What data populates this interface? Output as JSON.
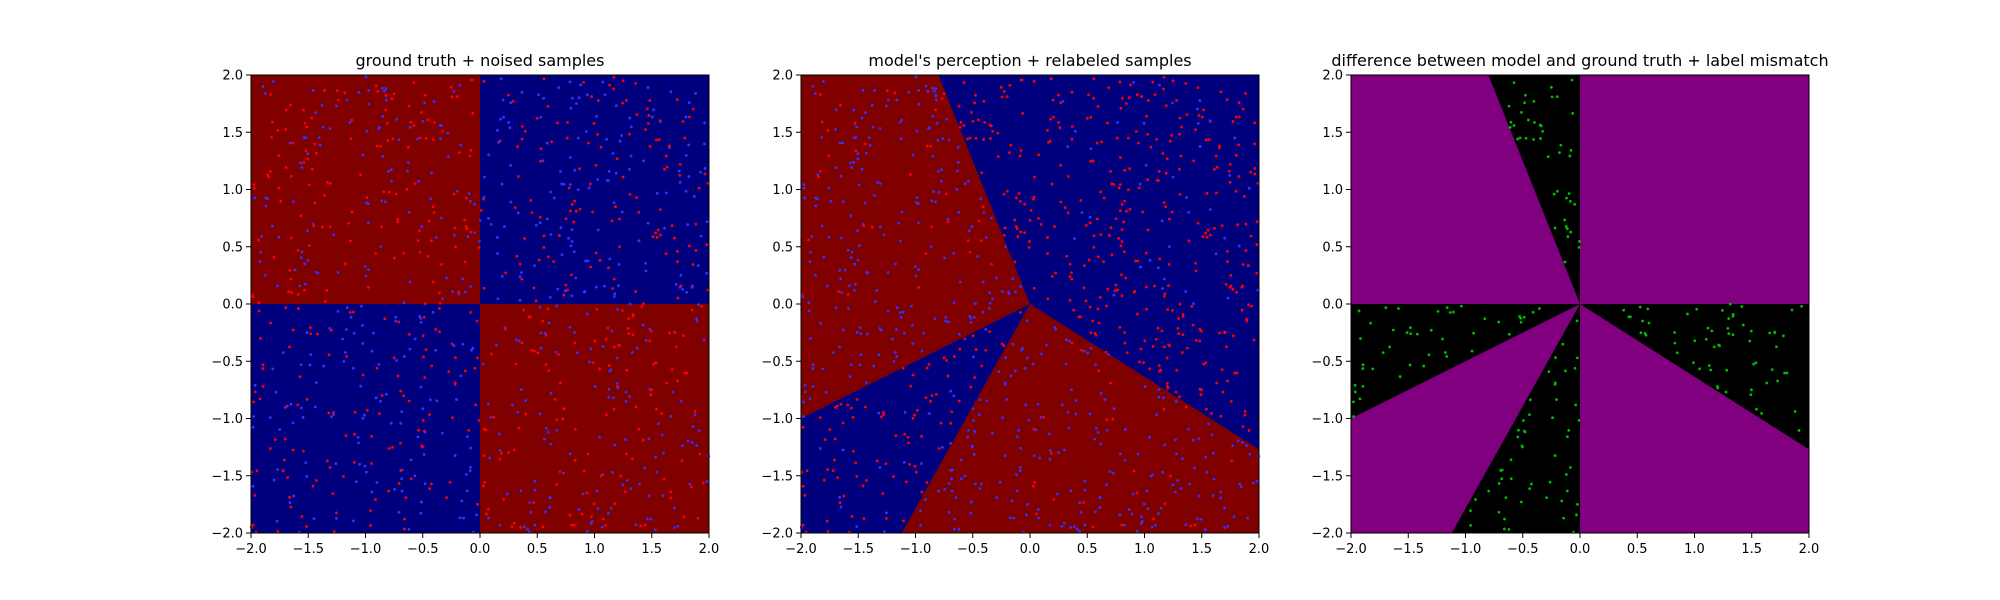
{
  "figure": {
    "colors": {
      "class_a": "#800000",
      "class_b": "#00007f",
      "agree": "#800080",
      "disagree": "#000000",
      "sample_red": "#ff0000",
      "sample_blue": "#3333ff",
      "sample_green": "#00bb00"
    }
  },
  "chart_data": [
    {
      "type": "scatter",
      "title": "ground truth + noised samples",
      "xlim": [
        -2.0,
        2.0
      ],
      "ylim": [
        -2.0,
        2.0
      ],
      "xticks": [
        "−2.0",
        "−1.5",
        "−1.0",
        "−0.5",
        "0.0",
        "0.5",
        "1.0",
        "1.5",
        "2.0"
      ],
      "yticks": [
        "−2.0",
        "−1.5",
        "−1.0",
        "−0.5",
        "0.0",
        "0.5",
        "1.0",
        "1.5",
        "2.0"
      ],
      "grid": false,
      "background_regions": [
        {
          "x": [
            -2.0,
            0.0
          ],
          "y": [
            0.0,
            2.0
          ],
          "color": "#800000"
        },
        {
          "x": [
            0.0,
            2.0
          ],
          "y": [
            -2.0,
            0.0
          ],
          "color": "#800000"
        },
        {
          "x": [
            0.0,
            2.0
          ],
          "y": [
            0.0,
            2.0
          ],
          "color": "#00007f"
        },
        {
          "x": [
            -2.0,
            0.0
          ],
          "y": [
            -2.0,
            0.0
          ],
          "color": "#00007f"
        }
      ],
      "points": "uniform random samples on [-2,2]x[-2,2], red and blue markers",
      "point_count": 1000
    },
    {
      "type": "scatter",
      "title": "model's perception + relabeled samples",
      "xlim": [
        -2.0,
        2.0
      ],
      "ylim": [
        -2.0,
        2.0
      ],
      "xticks": [
        "−2.0",
        "−1.5",
        "−1.0",
        "−0.5",
        "0.0",
        "0.5",
        "1.0",
        "1.5",
        "2.0"
      ],
      "yticks": [
        "−2.0",
        "−1.5",
        "−1.0",
        "−0.5",
        "0.0",
        "0.5",
        "1.0",
        "1.5",
        "2.0"
      ],
      "grid": false,
      "decision_boundaries": [
        {
          "from": [
            0.0,
            0.0
          ],
          "to": [
            -0.8,
            2.0
          ]
        },
        {
          "from": [
            0.0,
            0.0
          ],
          "to": [
            2.0,
            -1.27
          ]
        },
        {
          "from": [
            0.0,
            0.0
          ],
          "to": [
            -1.12,
            -2.0
          ]
        },
        {
          "from": [
            0.0,
            0.0
          ],
          "to": [
            -2.0,
            -1.0
          ]
        }
      ],
      "point_count": 1000
    },
    {
      "type": "scatter",
      "title": "difference between model and ground truth + label mismatch",
      "xlim": [
        -2.0,
        2.0
      ],
      "ylim": [
        -2.0,
        2.0
      ],
      "xticks": [
        "−2.0",
        "−1.5",
        "−1.0",
        "−0.5",
        "0.0",
        "0.5",
        "1.0",
        "1.5",
        "2.0"
      ],
      "yticks": [
        "−2.0",
        "−1.5",
        "−1.0",
        "−0.5",
        "0.0",
        "0.5",
        "1.0",
        "1.5",
        "2.0"
      ],
      "grid": false,
      "mismatch_points": "green markers inside black (disagreement) wedges",
      "point_count": 300
    }
  ]
}
